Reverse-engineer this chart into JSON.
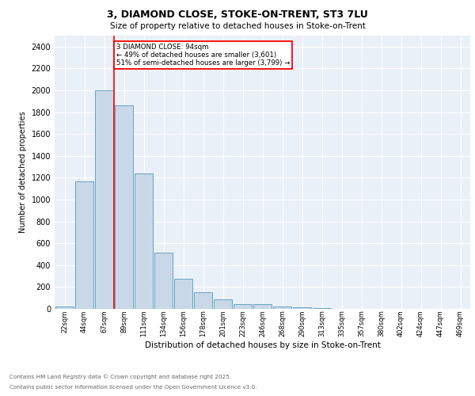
{
  "title_line1": "3, DIAMOND CLOSE, STOKE-ON-TRENT, ST3 7LU",
  "title_line2": "Size of property relative to detached houses in Stoke-on-Trent",
  "xlabel": "Distribution of detached houses by size in Stoke-on-Trent",
  "ylabel": "Number of detached properties",
  "categories": [
    "22sqm",
    "44sqm",
    "67sqm",
    "89sqm",
    "111sqm",
    "134sqm",
    "156sqm",
    "178sqm",
    "201sqm",
    "223sqm",
    "246sqm",
    "268sqm",
    "290sqm",
    "313sqm",
    "335sqm",
    "357sqm",
    "380sqm",
    "402sqm",
    "424sqm",
    "447sqm",
    "469sqm"
  ],
  "values": [
    25,
    1170,
    2000,
    1860,
    1240,
    515,
    275,
    150,
    90,
    45,
    45,
    20,
    15,
    5,
    3,
    3,
    3,
    2,
    2,
    2,
    2
  ],
  "bar_color": "#c8d8e8",
  "bar_edge_color": "#5599bb",
  "red_line_index": 3,
  "annotation_text": "3 DIAMOND CLOSE: 94sqm\n← 49% of detached houses are smaller (3,601)\n51% of semi-detached houses are larger (3,799) →",
  "annotation_box_color": "white",
  "annotation_box_edge": "red",
  "ylim": [
    0,
    2500
  ],
  "yticks": [
    0,
    200,
    400,
    600,
    800,
    1000,
    1200,
    1400,
    1600,
    1800,
    2000,
    2200,
    2400
  ],
  "bg_color": "#eaf0f8",
  "grid_color": "white",
  "footer_line1": "Contains HM Land Registry data © Crown copyright and database right 2025.",
  "footer_line2": "Contains public sector information licensed under the Open Government Licence v3.0."
}
